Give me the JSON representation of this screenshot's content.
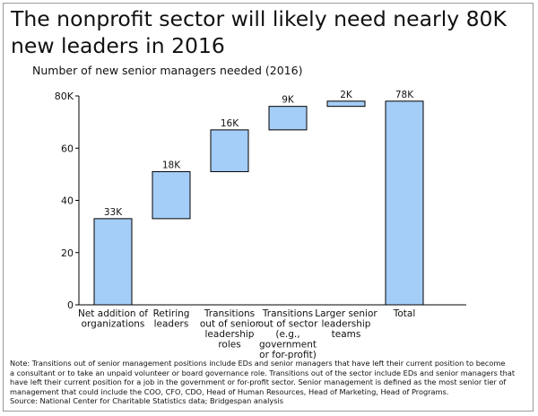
{
  "title_line1": "The nonprofit sector will likely need nearly 80K",
  "title_line2": "new leaders in 2016",
  "subtitle": "Number of new senior managers needed (2016)",
  "chart_data": {
    "type": "bar",
    "subtype": "waterfall",
    "categories": [
      [
        "Net addition of",
        "organizations"
      ],
      [
        "Retiring",
        "leaders"
      ],
      [
        "Transitions",
        "out of senior",
        "leadership",
        "roles"
      ],
      [
        "Transitions",
        "out of sector",
        "(e.g.,",
        "government",
        "or for-profit)"
      ],
      [
        "Larger senior",
        "leadership",
        "teams"
      ],
      [
        "Total"
      ]
    ],
    "increments": [
      33,
      18,
      16,
      9,
      2,
      78
    ],
    "is_total": [
      false,
      false,
      false,
      false,
      false,
      true
    ],
    "data_labels": [
      "33K",
      "18K",
      "16K",
      "9K",
      "2K",
      "78K"
    ],
    "ylim": [
      0,
      80
    ],
    "yticks": [
      0,
      20,
      40,
      60,
      80
    ],
    "ytick_labels": [
      "0",
      "20",
      "40",
      "60",
      "80K"
    ],
    "bar_color": "#a4cdf7",
    "bar_stroke": "#000000",
    "grid": false
  },
  "notes": [
    "Note:  Transitions out of senior management positions include EDs and senior managers that have left their current position to become",
    "a consultant or to take an unpaid volunteer or board governance role.  Transitions out of the sector include EDs and senior managers that",
    "have left their current position for a job in the government or for-profit sector.  Senior management is defined as the most senior tier of",
    "management that could include the COO, CFO, CDO, Head of Human Resources, Head of Marketing, Head of Programs.",
    "Source: National Center for Charitable Statistics data; Bridgespan analysis"
  ]
}
